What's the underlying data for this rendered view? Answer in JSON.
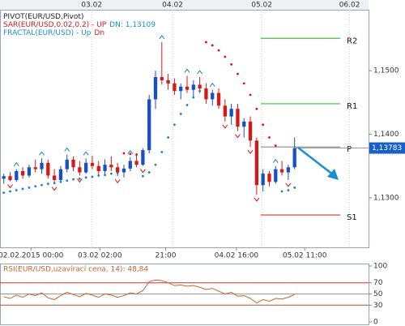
{
  "chart_data": [
    {
      "type": "candlestick",
      "indicators": [
        {
          "name": "PIVOT(EUR/USD,Pivot)",
          "color": "#222222"
        },
        {
          "name": "SAR(EUR/USD,0.02,0.2)  -  UP",
          "extra": "DN: 1,13109",
          "color": "#d81818",
          "extra_color": "#1a8fd0"
        },
        {
          "name": "FRACTAL(EUR/USD)  -  Up",
          "extra": "Dn",
          "color": "#1a8fd0",
          "extra_color": "#d81818"
        }
      ],
      "up_color": "#1a4fc4",
      "down_color": "#d81818",
      "open": [
        1.133,
        1.1334,
        1.1328,
        1.1342,
        1.1335,
        1.1348,
        1.1345,
        1.1355,
        1.1335,
        1.1328,
        1.1345,
        1.136,
        1.1348,
        1.134,
        1.1355,
        1.135,
        1.1342,
        1.1352,
        1.1348,
        1.134,
        1.1346,
        1.1358,
        1.1352,
        1.1375,
        1.1455,
        1.149,
        1.1485,
        1.148,
        1.1468,
        1.1475,
        1.147,
        1.1478,
        1.1472,
        1.1455,
        1.1465,
        1.1445,
        1.1428,
        1.144,
        1.1412,
        1.142,
        1.139,
        1.132,
        1.1338,
        1.1325,
        1.1345,
        1.134,
        1.1348
      ],
      "high": [
        1.1338,
        1.134,
        1.1345,
        1.1348,
        1.1352,
        1.136,
        1.1362,
        1.136,
        1.1345,
        1.135,
        1.1368,
        1.1365,
        1.1358,
        1.1362,
        1.1366,
        1.1358,
        1.136,
        1.1365,
        1.1355,
        1.1352,
        1.1364,
        1.137,
        1.1378,
        1.1462,
        1.15,
        1.1545,
        1.1495,
        1.1488,
        1.148,
        1.1492,
        1.1485,
        1.149,
        1.148,
        1.147,
        1.1472,
        1.1455,
        1.1448,
        1.1448,
        1.1425,
        1.1428,
        1.1395,
        1.1345,
        1.1342,
        1.135,
        1.1358,
        1.1352,
        1.1395
      ],
      "low": [
        1.1322,
        1.1326,
        1.1325,
        1.133,
        1.1332,
        1.134,
        1.1338,
        1.133,
        1.1322,
        1.1325,
        1.134,
        1.1342,
        1.1335,
        1.1338,
        1.1345,
        1.1336,
        1.1338,
        1.1342,
        1.1334,
        1.1332,
        1.1342,
        1.1348,
        1.135,
        1.137,
        1.144,
        1.1478,
        1.147,
        1.1462,
        1.1455,
        1.1465,
        1.1458,
        1.1465,
        1.1448,
        1.1445,
        1.144,
        1.142,
        1.1415,
        1.1405,
        1.1395,
        1.138,
        1.1305,
        1.131,
        1.1318,
        1.1322,
        1.1335,
        1.1328,
        1.1345
      ],
      "close": [
        1.1334,
        1.1328,
        1.1342,
        1.1335,
        1.1348,
        1.1345,
        1.1355,
        1.1335,
        1.1328,
        1.1345,
        1.136,
        1.1348,
        1.134,
        1.1355,
        1.135,
        1.1342,
        1.1352,
        1.1348,
        1.134,
        1.1346,
        1.1358,
        1.1352,
        1.1375,
        1.1455,
        1.149,
        1.1485,
        1.148,
        1.1468,
        1.1475,
        1.147,
        1.1478,
        1.1472,
        1.1455,
        1.1465,
        1.1445,
        1.1428,
        1.144,
        1.1412,
        1.142,
        1.139,
        1.132,
        1.1338,
        1.1325,
        1.1345,
        1.134,
        1.1348,
        1.1378
      ],
      "sar": [
        1.1308,
        1.131,
        1.1312,
        1.1314,
        1.1316,
        1.1318,
        1.132,
        1.1322,
        1.1323,
        1.1325,
        1.1327,
        1.1329,
        1.133,
        1.1332,
        1.1333,
        1.1335,
        1.1336,
        1.1338,
        1.1339,
        1.137,
        1.1369,
        1.1368,
        1.1334,
        1.134,
        1.1352,
        1.1372,
        1.1395,
        1.1415,
        1.1432,
        1.1446,
        1.1458,
        1.1468,
        1.1545,
        1.154,
        1.1532,
        1.1522,
        1.151,
        1.1495,
        1.148,
        1.1462,
        1.144,
        1.1415,
        1.1395,
        1.1382,
        1.131,
        1.1312,
        1.1316
      ],
      "sar_up_color": "#1a7fd0",
      "sar_down_color": "#e01010",
      "fractals_up": [
        2,
        6,
        10,
        13,
        20,
        25,
        29,
        31,
        33,
        43
      ],
      "fractals_down": [
        1,
        8,
        12,
        18,
        22,
        35,
        37,
        39,
        40,
        45
      ],
      "pivots": [
        {
          "label": "R2",
          "value": 1.1551,
          "color": "#44bb44"
        },
        {
          "label": "R1",
          "value": 1.1448,
          "color": "#44bb44"
        },
        {
          "label": "P",
          "value": 1.138,
          "color": "#999999"
        },
        {
          "label": "S1",
          "value": 1.1273,
          "color": "#dd3333"
        }
      ],
      "last_price": {
        "value": 1.13783,
        "label": "1,13783"
      },
      "xlim": [
        -0.6,
        57.7
      ],
      "ylim": [
        1.1222,
        1.1596
      ],
      "yticks": [
        {
          "value": 1.15,
          "label": "1,1500"
        },
        {
          "value": 1.14,
          "label": "1,1400"
        },
        {
          "value": 1.13,
          "label": "1,1300"
        }
      ],
      "xticks_top": [
        {
          "value": 13.9,
          "label": "03.02"
        },
        {
          "value": 26.7,
          "label": "04.02"
        },
        {
          "value": 40.8,
          "label": "05.02"
        },
        {
          "value": 54.7,
          "label": "06.02"
        }
      ],
      "xticks_bottom": [
        {
          "value": 4.3,
          "label": "02.02.2015 00:00"
        },
        {
          "value": 15.2,
          "label": "03.02 02:00"
        },
        {
          "value": 25.6,
          "label": "21:00"
        },
        {
          "value": 36.8,
          "label": "04.02 16:00"
        },
        {
          "value": 47.6,
          "label": "05.02 11:00"
        }
      ],
      "grid": true
    },
    {
      "type": "line",
      "title": "RSI(EUR/USD,uzavírací cena, 14): 48,84",
      "color": "#c8642a",
      "values": [
        45,
        42,
        48,
        44,
        50,
        47,
        52,
        43,
        40,
        47,
        53,
        49,
        45,
        51,
        48,
        44,
        50,
        48,
        44,
        47,
        52,
        50,
        56,
        72,
        75,
        74,
        70,
        65,
        66,
        64,
        65,
        62,
        58,
        60,
        55,
        50,
        53,
        46,
        47,
        42,
        34,
        40,
        37,
        42,
        41,
        44,
        49
      ],
      "ylim": [
        0,
        100
      ],
      "yticks": [
        100,
        70,
        50,
        30,
        0
      ],
      "levels": [
        {
          "value": 70,
          "color": "#cc3333"
        },
        {
          "value": 50,
          "color": "#999999"
        },
        {
          "value": 30,
          "color": "#aa5533"
        }
      ]
    }
  ]
}
